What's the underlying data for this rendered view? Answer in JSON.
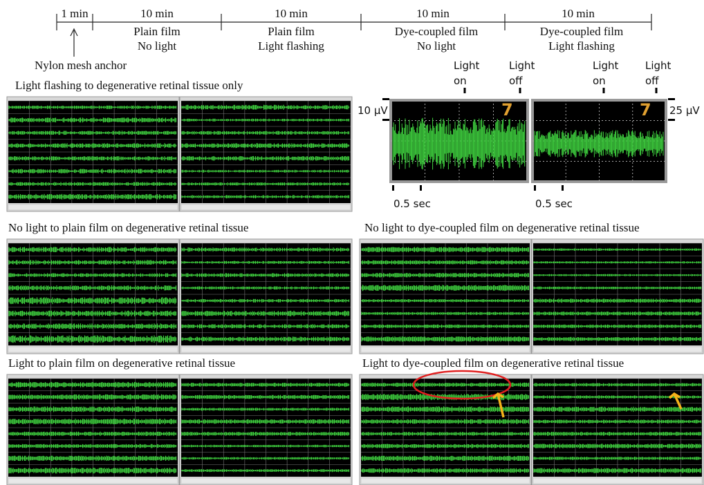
{
  "timeline": {
    "segments": [
      {
        "duration": "1 min"
      },
      {
        "duration": "10 min",
        "lines": [
          "Plain film",
          "No light"
        ]
      },
      {
        "duration": "10 min",
        "lines": [
          "Plain film",
          "Light flashing"
        ]
      },
      {
        "duration": "10 min",
        "lines": [
          "Dye-coupled film",
          "No light"
        ]
      },
      {
        "duration": "10 min",
        "lines": [
          "Dye-coupled film",
          "Light flashing"
        ]
      }
    ],
    "anchor": "Nylon mesh anchor"
  },
  "inset": {
    "markers": [
      [
        "Light",
        "on"
      ],
      [
        "Light",
        "off"
      ],
      [
        "Light",
        "on"
      ],
      [
        "Light",
        "off"
      ]
    ],
    "scale_left": "10 μV",
    "scale_right": "25 μV",
    "channel_labels": [
      "7",
      "7"
    ],
    "time_scales": [
      "0.5 sec",
      "0.5 sec"
    ]
  },
  "panels": [
    {
      "title": "Light flashing to degenerative retinal tissue only"
    },
    {
      "title": "No light to plain film on degenerative retinal tissue"
    },
    {
      "title": "No light to dye-coupled film on degenerative retinal tissue"
    },
    {
      "title": "Light to plain film on degenerative retinal tissue"
    },
    {
      "title": "Light to dye-coupled film on degenerative retinal tissue"
    }
  ]
}
